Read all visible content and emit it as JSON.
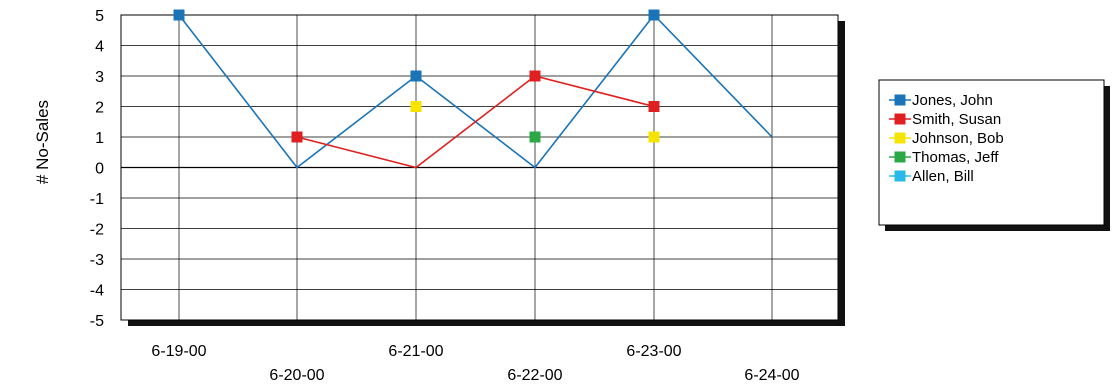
{
  "chart_data": {
    "type": "line",
    "title": "",
    "xlabel": "",
    "ylabel": "# No-Sales",
    "ylim": [
      -5,
      5
    ],
    "yticks": [
      5,
      4,
      3,
      2,
      1,
      0,
      -1,
      -2,
      -3,
      -4,
      -5
    ],
    "categories": [
      "6-19-00",
      "6-20-00",
      "6-21-00",
      "6-22-00",
      "6-23-00",
      "6-24-00"
    ],
    "grid": true,
    "legend_position": "right",
    "series": [
      {
        "name": "Jones, John",
        "color": "#1a74b8",
        "values": [
          5,
          0,
          3,
          0,
          5,
          1
        ],
        "markers": [
          true,
          false,
          true,
          false,
          true,
          false
        ]
      },
      {
        "name": "Smith, Susan",
        "color": "#e02020",
        "values": [
          null,
          1,
          0,
          3,
          2,
          null
        ],
        "markers": [
          false,
          true,
          false,
          true,
          true,
          false
        ]
      },
      {
        "name": "Johnson, Bob",
        "color": "#f5e400",
        "values": [
          null,
          null,
          2,
          null,
          1,
          null
        ],
        "markers": [
          false,
          false,
          true,
          false,
          true,
          false
        ]
      },
      {
        "name": "Thomas, Jeff",
        "color": "#2aa845",
        "values": [
          null,
          null,
          null,
          1,
          null,
          null
        ],
        "markers": [
          false,
          false,
          false,
          true,
          false,
          false
        ]
      },
      {
        "name": "Allen, Bill",
        "color": "#2ab8e8",
        "values": [
          null,
          null,
          null,
          null,
          null,
          null
        ],
        "markers": [
          false,
          false,
          false,
          false,
          false,
          false
        ]
      }
    ]
  }
}
